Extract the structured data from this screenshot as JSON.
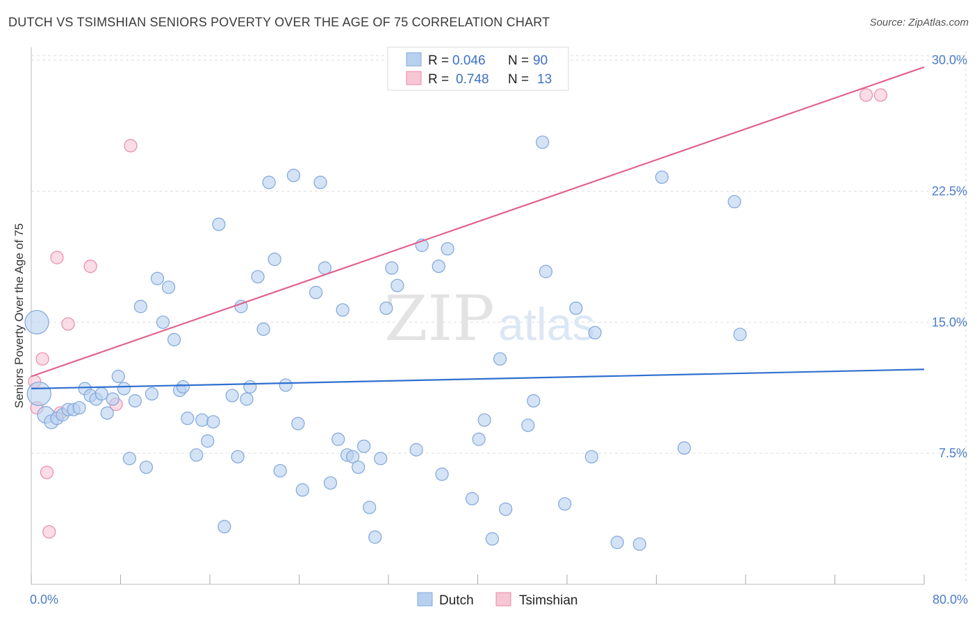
{
  "title": "DUTCH VS TSIMSHIAN SENIORS POVERTY OVER THE AGE OF 75 CORRELATION CHART",
  "source": "Source: ZipAtlas.com",
  "watermark": {
    "zip": "ZIP",
    "atlas": "atlas"
  },
  "colors": {
    "dutch_fill": "#b8d0ef",
    "dutch_stroke": "#7fa6dc",
    "dutch_line": "#2f6fcf",
    "tsimshian_fill": "#f7c6d5",
    "tsimshian_stroke": "#e88aa8",
    "tsimshian_line": "#e0628e",
    "grid": "#dddddd",
    "tick_text": "#4a7cc7"
  },
  "legend_top": {
    "rows": [
      {
        "r_label": "R =",
        "r_value": "0.046",
        "n_label": "N =",
        "n_value": "90"
      },
      {
        "r_label": "R =",
        "r_value": "0.748",
        "n_label": "N =",
        "n_value": "13"
      }
    ]
  },
  "legend_bottom": {
    "items": [
      "Dutch",
      "Tsimshian"
    ]
  },
  "chart_data": {
    "type": "scatter",
    "title": "DUTCH VS TSIMSHIAN SENIORS POVERTY OVER THE AGE OF 75 CORRELATION CHART",
    "xlabel": "",
    "ylabel": "Seniors Poverty Over the Age of 75",
    "xlim": [
      0,
      80
    ],
    "ylim": [
      0,
      30.5
    ],
    "x_tick_labels": [
      "0.0%",
      "80.0%"
    ],
    "y_ticks": [
      7.5,
      15.0,
      22.5,
      30.0
    ],
    "y_tick_labels": [
      "7.5%",
      "15.0%",
      "22.5%",
      "30.0%"
    ],
    "grid": true,
    "legend_position": "top-center",
    "series": [
      {
        "name": "Dutch",
        "trend": {
          "x": [
            0,
            80
          ],
          "y": [
            11.2,
            12.3
          ]
        },
        "points": [
          [
            0.5,
            15.0,
            17
          ],
          [
            0.7,
            10.9,
            17
          ],
          [
            1.3,
            9.7,
            12
          ],
          [
            1.8,
            9.3,
            10
          ],
          [
            2.3,
            9.5,
            9
          ],
          [
            2.8,
            9.7,
            9
          ],
          [
            3.3,
            10.0,
            9
          ],
          [
            3.8,
            10.0,
            9
          ],
          [
            4.3,
            10.1,
            9
          ],
          [
            4.8,
            11.2,
            9
          ],
          [
            5.3,
            10.8,
            9
          ],
          [
            5.8,
            10.6,
            9
          ],
          [
            6.3,
            10.9,
            9
          ],
          [
            6.8,
            9.8,
            9
          ],
          [
            7.3,
            10.6,
            9
          ],
          [
            7.8,
            11.9,
            9
          ],
          [
            8.3,
            11.2,
            9
          ],
          [
            8.8,
            7.2,
            9
          ],
          [
            9.3,
            10.5,
            9
          ],
          [
            9.8,
            15.9,
            9
          ],
          [
            10.3,
            6.7,
            9
          ],
          [
            10.8,
            10.9,
            9
          ],
          [
            11.3,
            17.5,
            9
          ],
          [
            11.8,
            15.0,
            9
          ],
          [
            12.3,
            17.0,
            9
          ],
          [
            12.8,
            14.0,
            9
          ],
          [
            13.3,
            11.1,
            9
          ],
          [
            13.6,
            11.3,
            9
          ],
          [
            14.0,
            9.5,
            9
          ],
          [
            14.8,
            7.4,
            9
          ],
          [
            15.3,
            9.4,
            9
          ],
          [
            15.8,
            8.2,
            9
          ],
          [
            16.3,
            9.3,
            9
          ],
          [
            16.8,
            20.6,
            9
          ],
          [
            17.3,
            3.3,
            9
          ],
          [
            18.0,
            10.8,
            9
          ],
          [
            18.5,
            7.3,
            9
          ],
          [
            18.8,
            15.9,
            9
          ],
          [
            19.3,
            10.6,
            9
          ],
          [
            19.6,
            11.3,
            9
          ],
          [
            20.3,
            17.6,
            9
          ],
          [
            20.8,
            14.6,
            9
          ],
          [
            21.3,
            23.0,
            9
          ],
          [
            21.8,
            18.6,
            9
          ],
          [
            22.3,
            6.5,
            9
          ],
          [
            22.8,
            11.4,
            9
          ],
          [
            23.5,
            23.4,
            9
          ],
          [
            23.9,
            9.2,
            9
          ],
          [
            24.3,
            5.4,
            9
          ],
          [
            25.5,
            16.7,
            9
          ],
          [
            25.9,
            23.0,
            9
          ],
          [
            26.3,
            18.1,
            9
          ],
          [
            26.8,
            5.8,
            9
          ],
          [
            27.5,
            8.3,
            9
          ],
          [
            27.9,
            15.7,
            9
          ],
          [
            28.3,
            7.4,
            9
          ],
          [
            28.8,
            7.3,
            9
          ],
          [
            29.3,
            6.7,
            9
          ],
          [
            29.8,
            7.9,
            9
          ],
          [
            30.3,
            4.4,
            9
          ],
          [
            30.8,
            2.7,
            9
          ],
          [
            31.3,
            7.2,
            9
          ],
          [
            31.8,
            15.8,
            9
          ],
          [
            32.3,
            18.1,
            9
          ],
          [
            32.8,
            17.1,
            9
          ],
          [
            34.5,
            7.7,
            9
          ],
          [
            35.0,
            19.4,
            9
          ],
          [
            36.5,
            18.2,
            9
          ],
          [
            36.8,
            6.3,
            9
          ],
          [
            37.3,
            19.2,
            9
          ],
          [
            39.5,
            4.9,
            9
          ],
          [
            40.1,
            8.3,
            9
          ],
          [
            40.6,
            9.4,
            9
          ],
          [
            41.3,
            2.6,
            9
          ],
          [
            42.0,
            12.9,
            9
          ],
          [
            42.5,
            4.3,
            9
          ],
          [
            44.5,
            9.1,
            9
          ],
          [
            45.0,
            10.5,
            9
          ],
          [
            45.8,
            25.3,
            9
          ],
          [
            46.1,
            17.9,
            9
          ],
          [
            47.8,
            4.6,
            9
          ],
          [
            48.8,
            15.8,
            9
          ],
          [
            50.2,
            7.3,
            9
          ],
          [
            50.5,
            14.4,
            9
          ],
          [
            52.5,
            2.4,
            9
          ],
          [
            54.5,
            2.3,
            9
          ],
          [
            56.5,
            23.3,
            9
          ],
          [
            58.5,
            7.8,
            9
          ],
          [
            63.0,
            21.9,
            9
          ],
          [
            63.5,
            14.3,
            9
          ]
        ]
      },
      {
        "name": "Tsimshian",
        "trend": {
          "x": [
            0,
            80
          ],
          "y": [
            11.9,
            29.6
          ]
        },
        "points": [
          [
            0.3,
            11.6,
            9
          ],
          [
            0.5,
            10.1,
            9
          ],
          [
            1.0,
            12.9,
            9
          ],
          [
            1.4,
            6.4,
            9
          ],
          [
            1.6,
            3.0,
            9
          ],
          [
            2.3,
            18.7,
            9
          ],
          [
            2.6,
            9.8,
            9
          ],
          [
            3.3,
            14.9,
            9
          ],
          [
            5.3,
            18.2,
            9
          ],
          [
            7.6,
            10.3,
            9
          ],
          [
            8.9,
            25.1,
            9
          ],
          [
            74.8,
            28.0,
            9
          ],
          [
            76.1,
            28.0,
            9
          ]
        ]
      }
    ]
  }
}
